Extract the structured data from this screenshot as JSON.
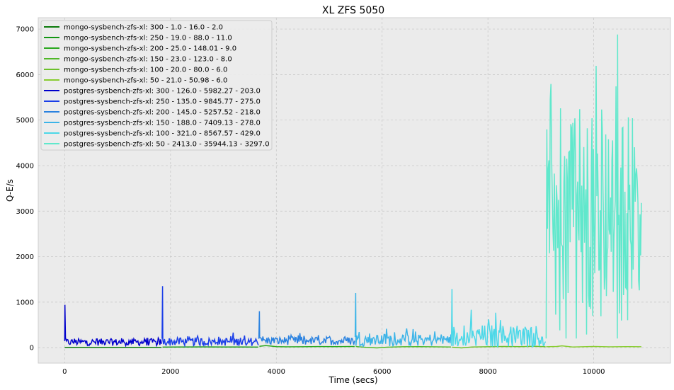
{
  "chart_data": {
    "type": "line",
    "title": "XL ZFS 5050",
    "xlabel": "Time (secs)",
    "ylabel": "Q-E/s",
    "xlim": [
      -500,
      11450
    ],
    "ylim": [
      -340,
      7250
    ],
    "xticks": [
      0,
      2000,
      4000,
      6000,
      8000,
      10000
    ],
    "yticks": [
      0,
      1000,
      2000,
      3000,
      4000,
      5000,
      6000,
      7000
    ],
    "grid": true,
    "legend_position": "top-left",
    "series": [
      {
        "name": "mongo-sysbench-zfs-xl: 300 - 1.0 - 16.0 - 2.0",
        "color": "#0b7a0b",
        "x": [
          0,
          400,
          800,
          1200,
          1600,
          1830
        ],
        "y": [
          3,
          5,
          4,
          6,
          5,
          4
        ]
      },
      {
        "name": "mongo-sysbench-zfs-xl: 250 - 19.0 - 88.0 - 11.0",
        "color": "#129612",
        "x": [
          1850,
          2200,
          2600,
          3000,
          3400,
          3660
        ],
        "y": [
          12,
          14,
          16,
          13,
          15,
          12
        ]
      },
      {
        "name": "mongo-sysbench-zfs-xl: 200 - 25.0 - 148.01 - 9.0",
        "color": "#2aa81e",
        "x": [
          3680,
          3800,
          4000,
          4200,
          4500,
          4800,
          5100,
          5480
        ],
        "y": [
          30,
          45,
          22,
          18,
          20,
          24,
          22,
          25
        ]
      },
      {
        "name": "mongo-sysbench-zfs-xl: 150 - 23.0 - 123.0 - 8.0",
        "color": "#50b828",
        "x": [
          5500,
          5700,
          5900,
          6100,
          6400,
          6700,
          7000,
          7300
        ],
        "y": [
          25,
          5,
          -5,
          10,
          20,
          22,
          18,
          15
        ]
      },
      {
        "name": "mongo-sysbench-zfs-xl: 100 - 20.0 - 80.0 - 6.0",
        "color": "#6cc02a",
        "x": [
          7320,
          7500,
          7700,
          8000,
          8300,
          8600,
          8900,
          9090
        ],
        "y": [
          10,
          -5,
          15,
          20,
          25,
          22,
          28,
          20
        ]
      },
      {
        "name": "mongo-sysbench-zfs-xl: 50 - 21.0 - 50.98 - 6.0",
        "color": "#88cc30",
        "x": [
          9100,
          9300,
          9400,
          9600,
          9800,
          10000,
          10300,
          10600,
          10900
        ],
        "y": [
          20,
          25,
          40,
          15,
          20,
          25,
          18,
          22,
          20
        ]
      },
      {
        "name": "postgres-sysbench-zfs-xl: 300 - 126.0 - 5982.27 - 203.0",
        "color": "#0000cc",
        "x_start": 0,
        "x_end": 1830,
        "count": 120,
        "base": 120,
        "amp": 110,
        "spike_x": 5,
        "spike_y": 940
      },
      {
        "name": "postgres-sysbench-zfs-xl: 250 - 135.0 - 9845.77 - 275.0",
        "color": "#1a3ee8",
        "x_start": 1840,
        "x_end": 3660,
        "count": 120,
        "base": 130,
        "amp": 130,
        "spike_x": 1850,
        "spike_y": 1350
      },
      {
        "name": "postgres-sysbench-zfs-xl: 200 - 145.0 - 5257.52 - 218.0",
        "color": "#2a82e0",
        "x_start": 3670,
        "x_end": 5480,
        "count": 120,
        "base": 150,
        "amp": 130,
        "spike_x": 3680,
        "spike_y": 800
      },
      {
        "name": "postgres-sysbench-zfs-xl: 150 - 188.0 - 7409.13 - 278.0",
        "color": "#3cb4e8",
        "x_start": 5490,
        "x_end": 7300,
        "count": 120,
        "base": 170,
        "amp": 200,
        "spike_x": 5500,
        "spike_y": 1200
      },
      {
        "name": "postgres-sysbench-zfs-xl: 100 - 321.0 - 8567.57 - 429.0",
        "color": "#4cd8e8",
        "x_start": 7310,
        "x_end": 9090,
        "count": 120,
        "base": 240,
        "amp": 380,
        "spike_x": 7320,
        "spike_y": 1290
      },
      {
        "name": "postgres-sysbench-zfs-xl: 50 - 2413.0 - 35944.13 - 3297.0",
        "color": "#60e8cc",
        "x_start": 9100,
        "x_end": 10900,
        "count": 140,
        "base": 2400,
        "amp": 2600,
        "spike_x": 10450,
        "spike_y": 6880
      }
    ]
  }
}
